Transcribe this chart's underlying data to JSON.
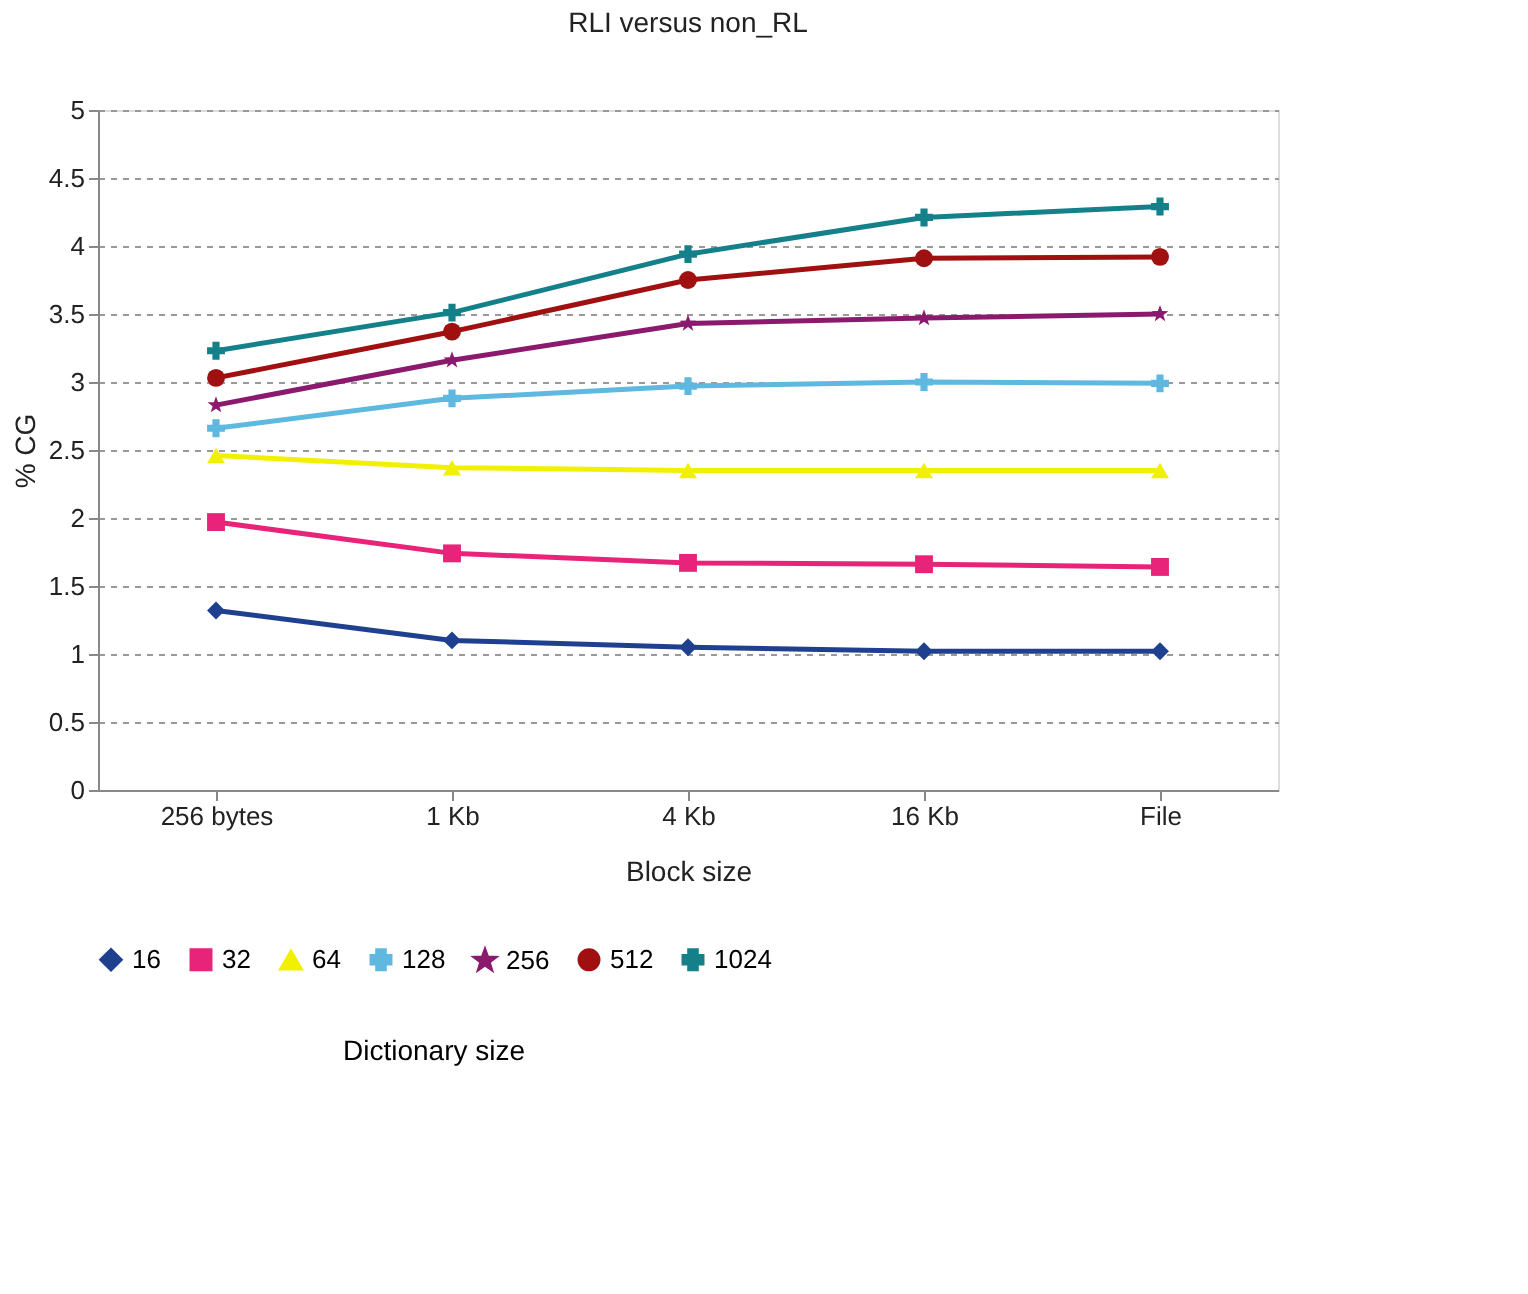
{
  "chart_data": {
    "type": "line",
    "title": "RLI versus non_RL",
    "xlabel": "Block size",
    "ylabel": "% CG",
    "legend_title": "Dictionary size",
    "categories": [
      "256 bytes",
      "1 Kb",
      "4 Kb",
      "16 Kb",
      "File"
    ],
    "ylim": [
      0,
      5
    ],
    "yticks": [
      0,
      0.5,
      1,
      1.5,
      2,
      2.5,
      3,
      3.5,
      4,
      4.5,
      5
    ],
    "grid": "y",
    "legend": "bottom",
    "series": [
      {
        "name": "16",
        "color": "#1f3f8f",
        "marker": "diamond",
        "values": [
          1.32,
          1.1,
          1.05,
          1.02,
          1.02
        ]
      },
      {
        "name": "32",
        "color": "#e8247a",
        "marker": "square",
        "values": [
          1.97,
          1.74,
          1.67,
          1.66,
          1.64
        ]
      },
      {
        "name": "64",
        "color": "#f0f000",
        "marker": "triangle",
        "values": [
          2.46,
          2.37,
          2.35,
          2.35,
          2.35
        ]
      },
      {
        "name": "128",
        "color": "#5fb8e0",
        "marker": "cross",
        "values": [
          2.66,
          2.88,
          2.97,
          3.0,
          2.99
        ]
      },
      {
        "name": "256",
        "color": "#8b1a6e",
        "marker": "star",
        "values": [
          2.83,
          3.16,
          3.43,
          3.47,
          3.5
        ]
      },
      {
        "name": "512",
        "color": "#a01010",
        "marker": "circle",
        "values": [
          3.03,
          3.37,
          3.75,
          3.91,
          3.92
        ]
      },
      {
        "name": "1024",
        "color": "#14808a",
        "marker": "cross",
        "values": [
          3.23,
          3.51,
          3.94,
          4.21,
          4.29
        ]
      }
    ]
  }
}
